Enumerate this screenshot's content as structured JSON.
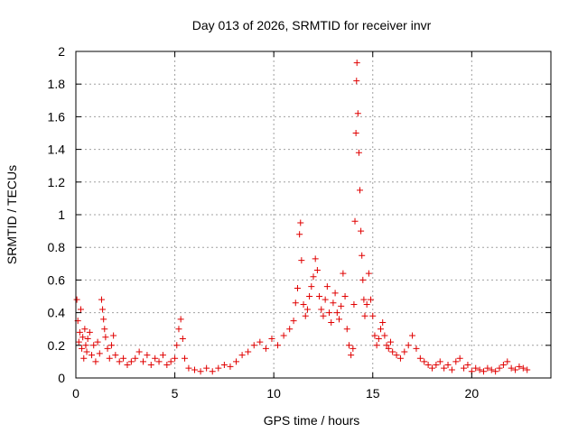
{
  "chart_data": {
    "type": "scatter",
    "title": "Day 013 of 2026, SRMTID for receiver invr",
    "xlabel": "GPS time / hours",
    "ylabel": "SRMTID / TECUs",
    "xlim": [
      0,
      24
    ],
    "ylim": [
      0,
      2
    ],
    "xticks": [
      "0",
      "5",
      "10",
      "15",
      "20"
    ],
    "yticks": [
      "0",
      "0.2",
      "0.4",
      "0.6",
      "0.8",
      "1",
      "1.2",
      "1.4",
      "1.6",
      "1.8",
      "2"
    ],
    "grid": true,
    "marker": "plus",
    "color": "#e00000",
    "series": [
      {
        "name": "SRMTID",
        "points": [
          [
            0.05,
            0.48
          ],
          [
            0.1,
            0.35
          ],
          [
            0.15,
            0.22
          ],
          [
            0.2,
            0.28
          ],
          [
            0.25,
            0.42
          ],
          [
            0.3,
            0.18
          ],
          [
            0.35,
            0.25
          ],
          [
            0.4,
            0.12
          ],
          [
            0.45,
            0.3
          ],
          [
            0.5,
            0.2
          ],
          [
            0.55,
            0.16
          ],
          [
            0.6,
            0.24
          ],
          [
            0.7,
            0.28
          ],
          [
            0.8,
            0.14
          ],
          [
            0.9,
            0.2
          ],
          [
            1.0,
            0.1
          ],
          [
            1.1,
            0.22
          ],
          [
            1.2,
            0.15
          ],
          [
            1.3,
            0.48
          ],
          [
            1.35,
            0.42
          ],
          [
            1.4,
            0.36
          ],
          [
            1.45,
            0.3
          ],
          [
            1.5,
            0.25
          ],
          [
            1.6,
            0.18
          ],
          [
            1.7,
            0.12
          ],
          [
            1.8,
            0.2
          ],
          [
            1.9,
            0.26
          ],
          [
            2.0,
            0.14
          ],
          [
            2.2,
            0.1
          ],
          [
            2.4,
            0.12
          ],
          [
            2.6,
            0.08
          ],
          [
            2.8,
            0.1
          ],
          [
            3.0,
            0.12
          ],
          [
            3.2,
            0.16
          ],
          [
            3.4,
            0.1
          ],
          [
            3.6,
            0.14
          ],
          [
            3.8,
            0.08
          ],
          [
            4.0,
            0.12
          ],
          [
            4.2,
            0.1
          ],
          [
            4.4,
            0.14
          ],
          [
            4.6,
            0.08
          ],
          [
            4.8,
            0.1
          ],
          [
            5.0,
            0.12
          ],
          [
            5.1,
            0.2
          ],
          [
            5.2,
            0.3
          ],
          [
            5.3,
            0.36
          ],
          [
            5.4,
            0.24
          ],
          [
            5.5,
            0.12
          ],
          [
            5.7,
            0.06
          ],
          [
            6.0,
            0.05
          ],
          [
            6.3,
            0.04
          ],
          [
            6.6,
            0.06
          ],
          [
            6.9,
            0.04
          ],
          [
            7.2,
            0.06
          ],
          [
            7.5,
            0.08
          ],
          [
            7.8,
            0.07
          ],
          [
            8.1,
            0.1
          ],
          [
            8.4,
            0.14
          ],
          [
            8.7,
            0.16
          ],
          [
            9.0,
            0.2
          ],
          [
            9.3,
            0.22
          ],
          [
            9.6,
            0.18
          ],
          [
            9.9,
            0.24
          ],
          [
            10.2,
            0.2
          ],
          [
            10.5,
            0.26
          ],
          [
            10.8,
            0.3
          ],
          [
            11.0,
            0.35
          ],
          [
            11.1,
            0.46
          ],
          [
            11.2,
            0.55
          ],
          [
            11.3,
            0.88
          ],
          [
            11.35,
            0.95
          ],
          [
            11.4,
            0.72
          ],
          [
            11.5,
            0.45
          ],
          [
            11.6,
            0.38
          ],
          [
            11.7,
            0.42
          ],
          [
            11.8,
            0.5
          ],
          [
            11.9,
            0.56
          ],
          [
            12.0,
            0.62
          ],
          [
            12.1,
            0.73
          ],
          [
            12.2,
            0.66
          ],
          [
            12.3,
            0.5
          ],
          [
            12.4,
            0.42
          ],
          [
            12.5,
            0.38
          ],
          [
            12.6,
            0.48
          ],
          [
            12.7,
            0.56
          ],
          [
            12.8,
            0.4
          ],
          [
            12.9,
            0.34
          ],
          [
            13.0,
            0.46
          ],
          [
            13.1,
            0.52
          ],
          [
            13.2,
            0.4
          ],
          [
            13.3,
            0.36
          ],
          [
            13.4,
            0.44
          ],
          [
            13.5,
            0.64
          ],
          [
            13.6,
            0.5
          ],
          [
            13.7,
            0.3
          ],
          [
            13.8,
            0.2
          ],
          [
            13.9,
            0.14
          ],
          [
            14.0,
            0.18
          ],
          [
            14.05,
            0.45
          ],
          [
            14.1,
            0.96
          ],
          [
            14.15,
            1.5
          ],
          [
            14.18,
            1.82
          ],
          [
            14.2,
            1.93
          ],
          [
            14.25,
            1.62
          ],
          [
            14.3,
            1.38
          ],
          [
            14.35,
            1.15
          ],
          [
            14.4,
            0.9
          ],
          [
            14.45,
            0.75
          ],
          [
            14.5,
            0.6
          ],
          [
            14.55,
            0.48
          ],
          [
            14.6,
            0.38
          ],
          [
            14.7,
            0.45
          ],
          [
            14.8,
            0.64
          ],
          [
            14.9,
            0.48
          ],
          [
            15.0,
            0.38
          ],
          [
            15.1,
            0.26
          ],
          [
            15.2,
            0.2
          ],
          [
            15.3,
            0.24
          ],
          [
            15.4,
            0.3
          ],
          [
            15.5,
            0.34
          ],
          [
            15.6,
            0.26
          ],
          [
            15.7,
            0.2
          ],
          [
            15.8,
            0.18
          ],
          [
            15.9,
            0.22
          ],
          [
            16.0,
            0.16
          ],
          [
            16.2,
            0.14
          ],
          [
            16.4,
            0.12
          ],
          [
            16.6,
            0.16
          ],
          [
            16.8,
            0.2
          ],
          [
            17.0,
            0.26
          ],
          [
            17.2,
            0.18
          ],
          [
            17.4,
            0.12
          ],
          [
            17.6,
            0.1
          ],
          [
            17.8,
            0.08
          ],
          [
            18.0,
            0.06
          ],
          [
            18.2,
            0.08
          ],
          [
            18.4,
            0.1
          ],
          [
            18.6,
            0.06
          ],
          [
            18.8,
            0.08
          ],
          [
            19.0,
            0.05
          ],
          [
            19.2,
            0.1
          ],
          [
            19.4,
            0.12
          ],
          [
            19.6,
            0.06
          ],
          [
            19.8,
            0.08
          ],
          [
            20.0,
            0.04
          ],
          [
            20.2,
            0.06
          ],
          [
            20.4,
            0.05
          ],
          [
            20.6,
            0.04
          ],
          [
            20.8,
            0.06
          ],
          [
            21.0,
            0.05
          ],
          [
            21.2,
            0.04
          ],
          [
            21.4,
            0.06
          ],
          [
            21.6,
            0.08
          ],
          [
            21.8,
            0.1
          ],
          [
            22.0,
            0.06
          ],
          [
            22.2,
            0.05
          ],
          [
            22.4,
            0.07
          ],
          [
            22.6,
            0.06
          ],
          [
            22.8,
            0.05
          ]
        ]
      }
    ]
  }
}
